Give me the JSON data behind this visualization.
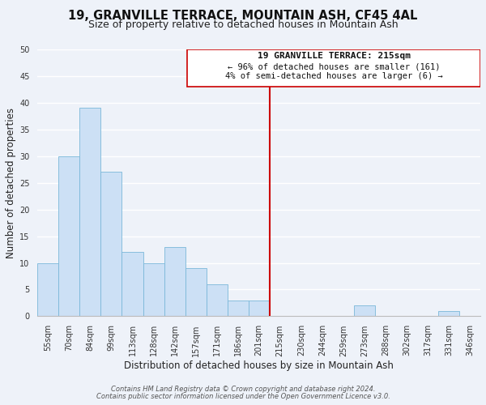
{
  "title": "19, GRANVILLE TERRACE, MOUNTAIN ASH, CF45 4AL",
  "subtitle": "Size of property relative to detached houses in Mountain Ash",
  "xlabel": "Distribution of detached houses by size in Mountain Ash",
  "ylabel": "Number of detached properties",
  "bar_labels": [
    "55sqm",
    "70sqm",
    "84sqm",
    "99sqm",
    "113sqm",
    "128sqm",
    "142sqm",
    "157sqm",
    "171sqm",
    "186sqm",
    "201sqm",
    "215sqm",
    "230sqm",
    "244sqm",
    "259sqm",
    "273sqm",
    "288sqm",
    "302sqm",
    "317sqm",
    "331sqm",
    "346sqm"
  ],
  "bar_values": [
    10,
    30,
    39,
    27,
    12,
    10,
    13,
    9,
    6,
    3,
    3,
    0,
    0,
    0,
    0,
    2,
    0,
    0,
    0,
    1,
    0
  ],
  "bar_color": "#cce0f5",
  "bar_edge_color": "#7ab8d9",
  "vline_color": "#cc0000",
  "ylim": [
    0,
    50
  ],
  "yticks": [
    0,
    5,
    10,
    15,
    20,
    25,
    30,
    35,
    40,
    45,
    50
  ],
  "annotation_title": "19 GRANVILLE TERRACE: 215sqm",
  "annotation_line1": "← 96% of detached houses are smaller (161)",
  "annotation_line2": "4% of semi-detached houses are larger (6) →",
  "footer_line1": "Contains HM Land Registry data © Crown copyright and database right 2024.",
  "footer_line2": "Contains public sector information licensed under the Open Government Licence v3.0.",
  "bg_color": "#eef2f9",
  "grid_color": "#ffffff",
  "title_fontsize": 10.5,
  "subtitle_fontsize": 9,
  "axis_label_fontsize": 8.5,
  "tick_fontsize": 7,
  "annotation_fontsize": 7.5,
  "footer_fontsize": 6
}
